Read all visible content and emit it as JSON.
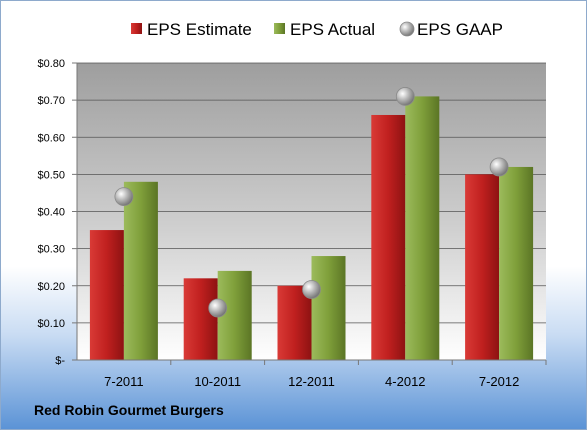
{
  "chart_data": {
    "type": "bar",
    "categories": [
      "7-2011",
      "10-2011",
      "12-2011",
      "4-2012",
      "7-2012"
    ],
    "series": [
      {
        "name": "EPS Estimate",
        "kind": "bar",
        "color": "#c0201f",
        "values": [
          0.35,
          0.22,
          0.2,
          0.66,
          0.5
        ]
      },
      {
        "name": "EPS Actual",
        "kind": "bar",
        "color": "#7f9f3a",
        "values": [
          0.48,
          0.24,
          0.28,
          0.71,
          0.52
        ]
      },
      {
        "name": "EPS GAAP",
        "kind": "marker",
        "color": "#a0a0a0",
        "values": [
          0.44,
          0.14,
          0.19,
          0.71,
          0.52
        ]
      }
    ],
    "ylim": [
      0,
      0.8
    ],
    "yticks": [
      0,
      0.1,
      0.2,
      0.3,
      0.4,
      0.5,
      0.6,
      0.7,
      0.8
    ],
    "ytick_labels": [
      "$-",
      "$0.10",
      "$0.20",
      "$0.30",
      "$0.40",
      "$0.50",
      "$0.60",
      "$0.70",
      "$0.80"
    ],
    "grid": true,
    "legend_position": "top"
  },
  "footer": {
    "company": "Red Robin Gourmet Burgers"
  }
}
